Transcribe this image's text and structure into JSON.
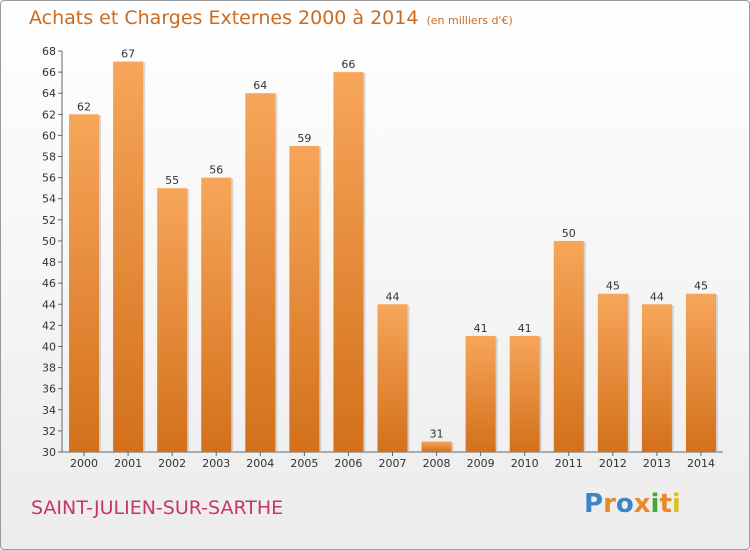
{
  "chart_data": {
    "type": "bar",
    "title": "Achats et Charges Externes 2000 à 2014",
    "subtitle": "(en milliers d'€)",
    "xlabel": "",
    "ylabel": "",
    "categories": [
      "2000",
      "2001",
      "2002",
      "2003",
      "2004",
      "2005",
      "2006",
      "2007",
      "2008",
      "2009",
      "2010",
      "2011",
      "2012",
      "2013",
      "2014"
    ],
    "values": [
      62,
      67,
      55,
      56,
      64,
      59,
      66,
      44,
      31,
      41,
      41,
      50,
      45,
      44,
      45
    ],
    "ylim": [
      30,
      68
    ],
    "yticks": [
      30,
      32,
      34,
      36,
      38,
      40,
      42,
      44,
      46,
      48,
      50,
      52,
      54,
      56,
      58,
      60,
      62,
      64,
      66,
      68
    ],
    "grid": false,
    "legend": "none",
    "bar_color_light": "#f7a659",
    "bar_color_dark": "#d3701c"
  },
  "footer": {
    "commune": "SAINT-JULIEN-SUR-SARTHE",
    "logo": [
      "P",
      "r",
      "o",
      "x",
      "i",
      "t",
      "i"
    ],
    "logo_colors": [
      "#3b86c8",
      "#e8892b",
      "#3b86c8",
      "#e8892b",
      "#4aa832",
      "#e8892b",
      "#d8c22a"
    ]
  }
}
